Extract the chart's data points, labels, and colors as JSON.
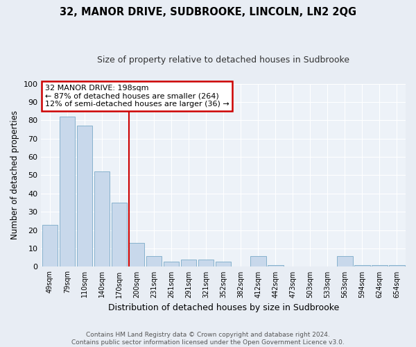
{
  "title": "32, MANOR DRIVE, SUDBROOKE, LINCOLN, LN2 2QG",
  "subtitle": "Size of property relative to detached houses in Sudbrooke",
  "xlabel": "Distribution of detached houses by size in Sudbrooke",
  "ylabel": "Number of detached properties",
  "categories": [
    "49sqm",
    "79sqm",
    "110sqm",
    "140sqm",
    "170sqm",
    "200sqm",
    "231sqm",
    "261sqm",
    "291sqm",
    "321sqm",
    "352sqm",
    "382sqm",
    "412sqm",
    "442sqm",
    "473sqm",
    "503sqm",
    "533sqm",
    "563sqm",
    "594sqm",
    "624sqm",
    "654sqm"
  ],
  "values": [
    23,
    82,
    77,
    52,
    35,
    13,
    6,
    3,
    4,
    4,
    3,
    0,
    6,
    1,
    0,
    0,
    0,
    6,
    1,
    1,
    1
  ],
  "bar_color": "#c8d8eb",
  "bar_edge_color": "#7aaac8",
  "vline_x_index": 5,
  "vline_color": "#cc0000",
  "annotation_title": "32 MANOR DRIVE: 198sqm",
  "annotation_line1": "← 87% of detached houses are smaller (264)",
  "annotation_line2": "12% of semi-detached houses are larger (36) →",
  "annotation_box_color": "#cc0000",
  "ylim": [
    0,
    100
  ],
  "yticks": [
    0,
    10,
    20,
    30,
    40,
    50,
    60,
    70,
    80,
    90,
    100
  ],
  "footnote1": "Contains HM Land Registry data © Crown copyright and database right 2024.",
  "footnote2": "Contains public sector information licensed under the Open Government Licence v3.0.",
  "background_color": "#e8edf4",
  "plot_bg_color": "#edf2f8"
}
